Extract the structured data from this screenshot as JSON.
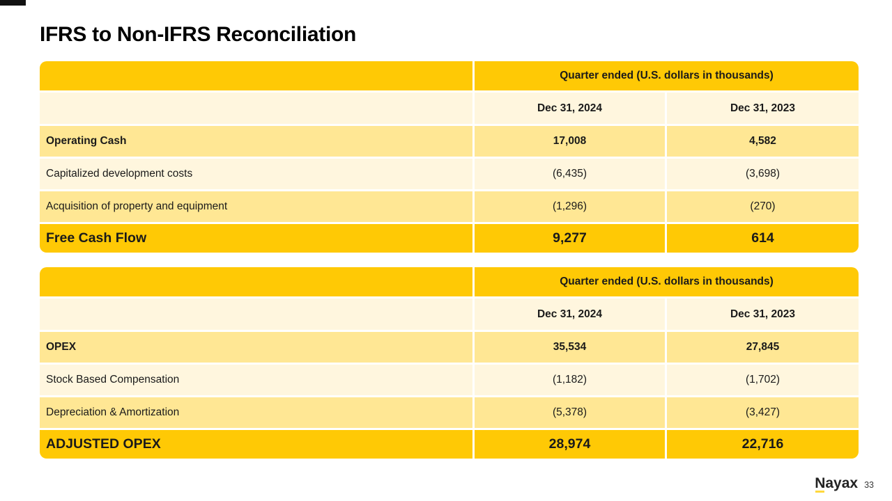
{
  "slide": {
    "title": "IFRS to Non-IFRS Reconciliation",
    "page_number": "33",
    "logo_text": "Nayax"
  },
  "colors": {
    "gold": "#FFC905",
    "row_medium": "#FFE794",
    "row_light": "#FFF6DE",
    "logo_underline": "#FFD83D"
  },
  "tables": [
    {
      "header": "Quarter ended (U.S. dollars in thousands)",
      "columns": [
        "Dec 31, 2024",
        "Dec 31, 2023"
      ],
      "rows": [
        {
          "label": "Operating Cash",
          "values": [
            "17,008",
            "4,582"
          ]
        },
        {
          "label": "Capitalized development costs",
          "values": [
            "(6,435)",
            "(3,698)"
          ]
        },
        {
          "label": "Acquisition of property and equipment",
          "values": [
            "(1,296)",
            "(270)"
          ]
        },
        {
          "label": "Free Cash Flow",
          "values": [
            "9,277",
            "614"
          ]
        }
      ]
    },
    {
      "header": "Quarter ended (U.S. dollars in thousands)",
      "columns": [
        "Dec 31, 2024",
        "Dec 31, 2023"
      ],
      "rows": [
        {
          "label": "OPEX",
          "values": [
            "35,534",
            "27,845"
          ]
        },
        {
          "label": "Stock Based Compensation",
          "values": [
            "(1,182)",
            "(1,702)"
          ]
        },
        {
          "label": "Depreciation & Amortization",
          "values": [
            "(5,378)",
            "(3,427)"
          ]
        },
        {
          "label": "ADJUSTED OPEX",
          "values": [
            "28,974",
            "22,716"
          ]
        }
      ]
    }
  ]
}
